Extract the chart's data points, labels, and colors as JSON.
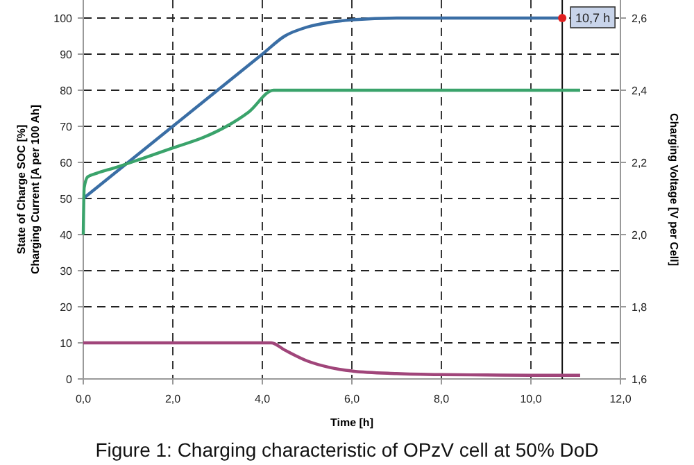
{
  "chart_data": {
    "type": "line",
    "title": "Figure 1: Charging characteristic of OPzV cell at 50% DoD",
    "xlabel": "Time [h]",
    "ylabel": "State of Charge SOC [%]\nCharging Current [A per 100 Ah]",
    "y2label": "Charging Voltage [V per Cell]",
    "xlim": [
      0,
      12
    ],
    "xticks": [
      {
        "value": 0,
        "label": "0,0"
      },
      {
        "value": 2,
        "label": "2,0"
      },
      {
        "value": 4,
        "label": "4,0"
      },
      {
        "value": 6,
        "label": "6,0"
      },
      {
        "value": 8,
        "label": "8,0"
      },
      {
        "value": 10,
        "label": "10,0"
      },
      {
        "value": 12,
        "label": "12,0"
      }
    ],
    "ylim": [
      0,
      105
    ],
    "yticks": [
      0,
      10,
      20,
      30,
      40,
      50,
      60,
      70,
      80,
      90,
      100
    ],
    "y2lim": [
      1.6,
      2.65
    ],
    "y2ticks": [
      {
        "value": 1.6,
        "label": "1,6"
      },
      {
        "value": 1.8,
        "label": "1,8"
      },
      {
        "value": 2.0,
        "label": "2,0"
      },
      {
        "value": 2.2,
        "label": "2,2"
      },
      {
        "value": 2.4,
        "label": "2,4"
      },
      {
        "value": 2.6,
        "label": "2,6"
      }
    ],
    "grid": true,
    "ref_lines": [
      {
        "axis": "x",
        "value": 10.7,
        "color": "#111111"
      }
    ],
    "marker": "none",
    "line_style": "solid",
    "series": [
      {
        "color": "#3a6ea5",
        "x": [
          0,
          1,
          2,
          3,
          4,
          4.5,
          5,
          5.5,
          6,
          7,
          8,
          9,
          10,
          10.7
        ],
        "values": [
          50,
          60,
          70,
          80,
          90,
          95,
          97.5,
          98.8,
          99.5,
          100,
          100,
          100,
          100,
          100
        ]
      },
      {
        "color": "#a0457a",
        "x": [
          0,
          2,
          4,
          4.2,
          4.5,
          5,
          5.5,
          6,
          7,
          8,
          9,
          10,
          11.1
        ],
        "values": [
          10,
          10,
          10,
          10,
          8,
          5,
          3.2,
          2.2,
          1.5,
          1.2,
          1.1,
          1,
          1
        ]
      },
      {
        "color": "#3aa36b",
        "axis": "y2",
        "x": [
          0,
          0.02,
          0.1,
          0.3,
          0.7,
          1.3,
          2,
          2.7,
          3.2,
          3.7,
          4.25,
          6,
          8,
          10,
          11.1
        ],
        "values": [
          2.0,
          2.13,
          2.16,
          2.17,
          2.185,
          2.21,
          2.24,
          2.27,
          2.3,
          2.34,
          2.4,
          2.4,
          2.4,
          2.4,
          2.4
        ]
      }
    ],
    "annotations": [
      {
        "text": "10,7 h",
        "x": 10.7,
        "y": 100
      }
    ]
  }
}
